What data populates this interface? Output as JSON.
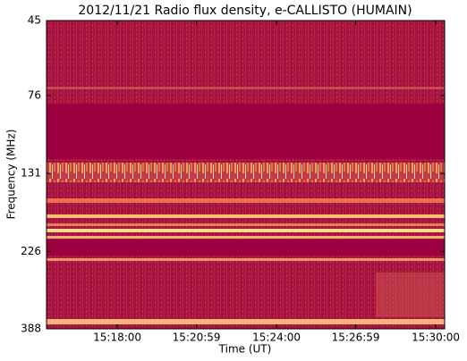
{
  "chart_data": {
    "type": "spectrogram",
    "title": "2012/11/21  Radio flux density, e-CALLISTO (HUMAIN)",
    "x_label": "Time (UT)",
    "y_label": "Frequency (MHz)",
    "xlim": [
      "15:15:20",
      "15:30:20"
    ],
    "xticks": [
      "15:18:00",
      "15:20:59",
      "15:24:00",
      "15:26:59",
      "15:30:00"
    ],
    "ylim": [
      45,
      388
    ],
    "yscale": "log",
    "y_inverted": true,
    "yticks": [
      45,
      76,
      131,
      226,
      388
    ]
  }
}
